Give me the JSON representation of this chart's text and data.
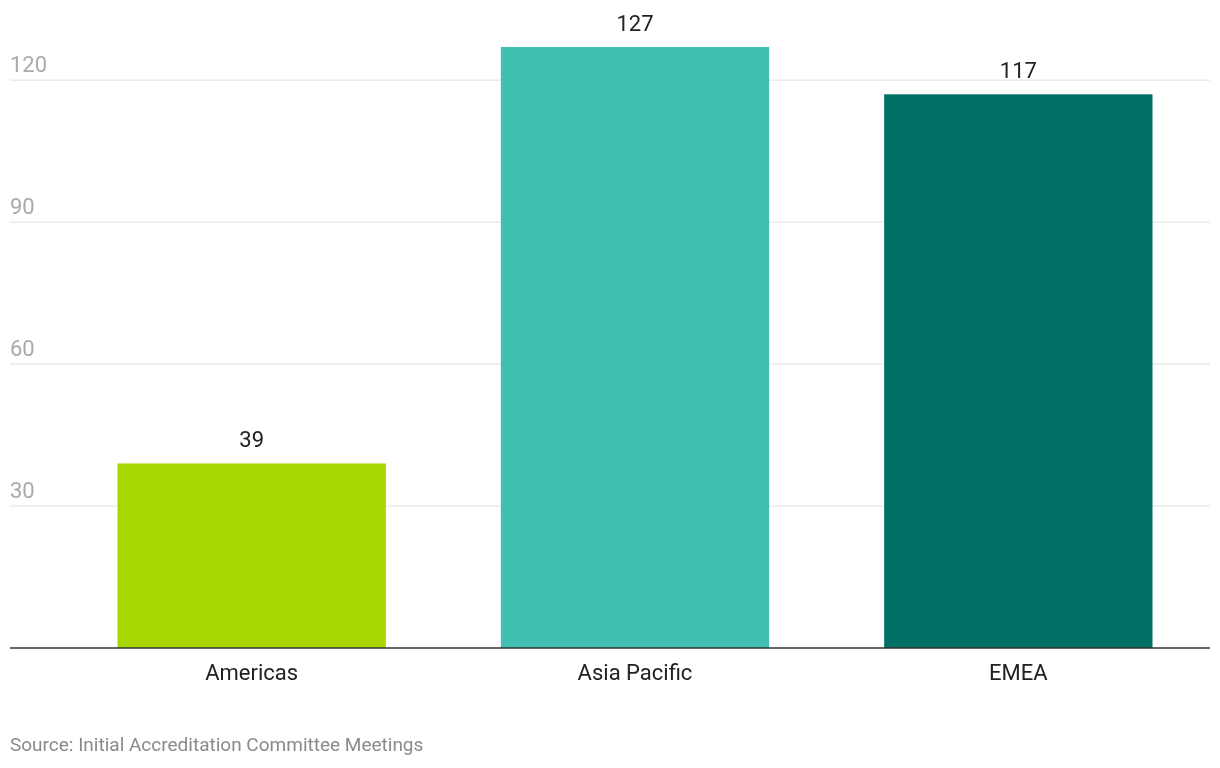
{
  "chart_data": {
    "type": "bar",
    "categories": [
      "Americas",
      "Asia Pacific",
      "EMEA"
    ],
    "values": [
      39,
      127,
      117
    ],
    "colors": [
      "#a8d600",
      "#41bfb0",
      "#006f64"
    ],
    "ylim": [
      0,
      127
    ],
    "yticks": [
      30,
      60,
      90,
      120
    ],
    "grid": "y",
    "data_labels": true,
    "annotations": [
      "Source: Initial Accreditation Committee Meetings"
    ]
  }
}
